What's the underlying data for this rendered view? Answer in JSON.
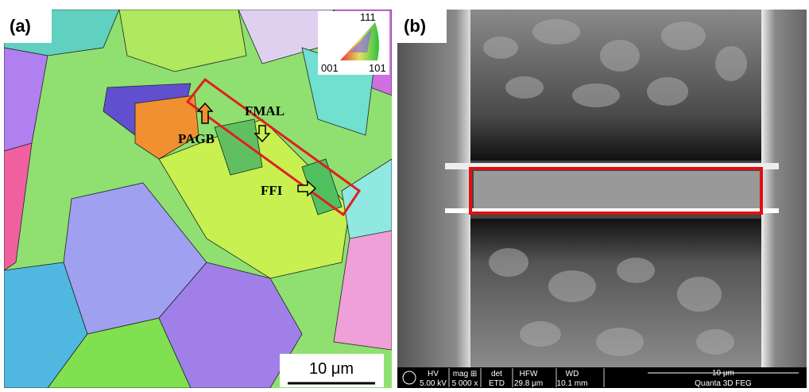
{
  "panel_a": {
    "label": "(a)",
    "legend": {
      "top": "111",
      "left": "001",
      "right": "101"
    },
    "annotations": [
      "FMAL",
      "PAGB",
      "FFI"
    ],
    "scale_bar": "10 μm"
  },
  "panel_b": {
    "label": "(b)",
    "databar": {
      "headers": [
        "HV",
        "mag ⊞",
        "det",
        "HFW",
        "WD"
      ],
      "values": [
        "5.00 kV",
        "5 000 x",
        "ETD",
        "29.8 μm",
        "10.1 mm"
      ],
      "scale_bar": "10 μm",
      "instrument": "Quanta 3D FEG"
    }
  }
}
